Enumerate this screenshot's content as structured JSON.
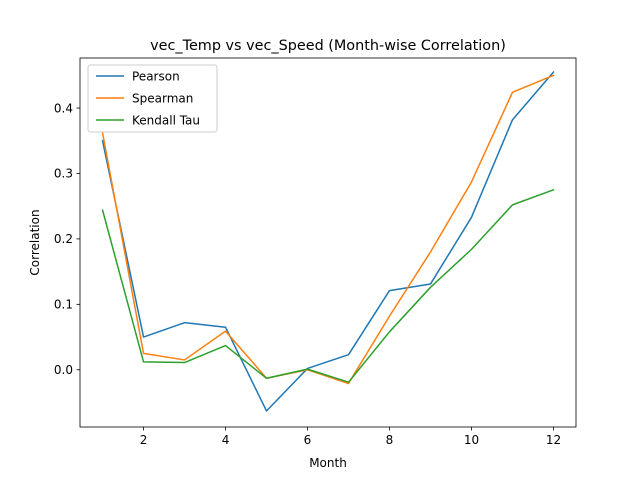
{
  "chart_data": {
    "type": "line",
    "title": "vec_Temp vs vec_Speed (Month-wise Correlation)",
    "xlabel": "Month",
    "ylabel": "Correlation",
    "x": [
      1,
      2,
      3,
      4,
      5,
      6,
      7,
      8,
      9,
      10,
      11,
      12
    ],
    "xlim": [
      0.45,
      12.55
    ],
    "ylim": [
      -0.0875,
      0.4765
    ],
    "xticks": [
      2,
      4,
      6,
      8,
      10,
      12
    ],
    "yticks": [
      0.0,
      0.1,
      0.2,
      0.3,
      0.4
    ],
    "xtick_labels": [
      "2",
      "4",
      "6",
      "8",
      "10",
      "12"
    ],
    "ytick_labels": [
      "0.0",
      "0.1",
      "0.2",
      "0.3",
      "0.4"
    ],
    "grid": false,
    "legend_position": "upper-left",
    "series": [
      {
        "name": "Pearson",
        "color": "#1f77b4",
        "values": [
          0.35,
          0.05,
          0.072,
          0.065,
          -0.063,
          0.002,
          0.023,
          0.121,
          0.131,
          0.233,
          0.382,
          0.455
        ]
      },
      {
        "name": "Spearman",
        "color": "#ff7f0e",
        "values": [
          0.362,
          0.025,
          0.015,
          0.059,
          -0.013,
          0.0,
          -0.021,
          0.082,
          0.18,
          0.287,
          0.424,
          0.45
        ]
      },
      {
        "name": "Kendall Tau",
        "color": "#2ca02c",
        "values": [
          0.244,
          0.012,
          0.011,
          0.037,
          -0.013,
          0.001,
          -0.019,
          0.058,
          0.126,
          0.184,
          0.252,
          0.275
        ]
      }
    ]
  }
}
